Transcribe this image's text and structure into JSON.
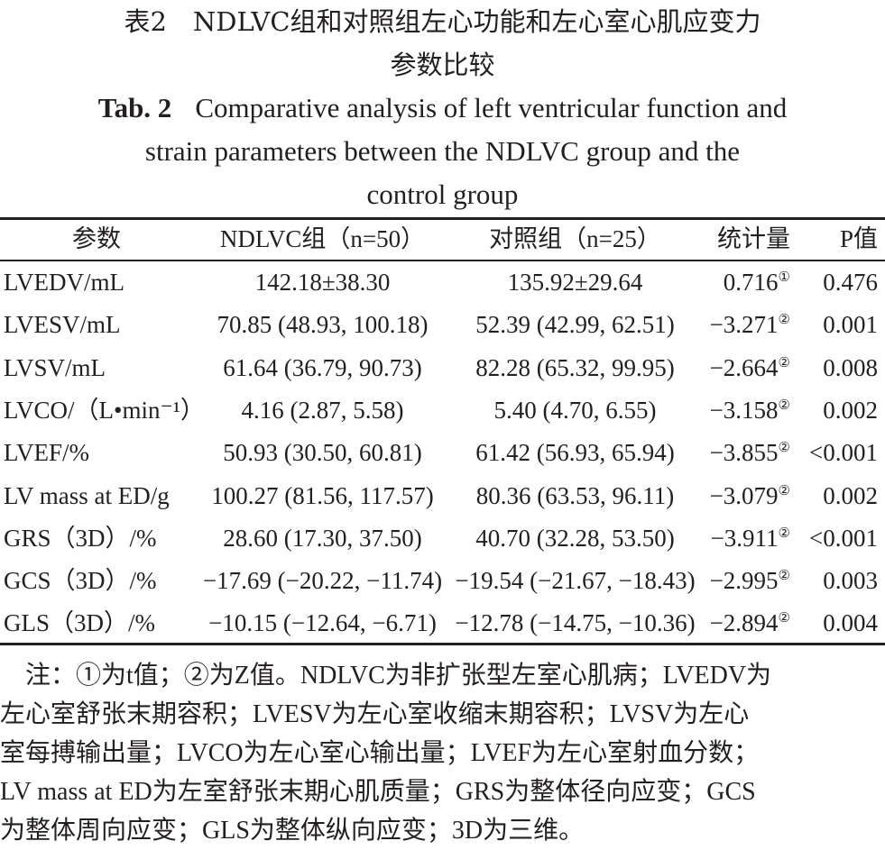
{
  "caption": {
    "cn_line1": "表2　NDLVC组和对照组左心功能和左心室心肌应变力",
    "cn_line2": "参数比较",
    "en_label": "Tab. 2",
    "en_line1": "Comparative analysis of left ventricular function and",
    "en_line2": "strain parameters between the NDLVC group and the",
    "en_line3": "control group"
  },
  "table": {
    "headers": [
      "参数",
      "NDLVC组（n=50）",
      "对照组（n=25）",
      "统计量",
      "P值"
    ],
    "rows": [
      {
        "param": "LVEDV/mL",
        "ndlvc": "142.18±38.30",
        "control": "135.92±29.64",
        "stat": "0.716",
        "mark": "①",
        "p": "0.476"
      },
      {
        "param": "LVESV/mL",
        "ndlvc": "70.85 (48.93, 100.18)",
        "control": "52.39 (42.99, 62.51)",
        "stat": "−3.271",
        "mark": "②",
        "p": "0.001"
      },
      {
        "param": "LVSV/mL",
        "ndlvc": "61.64 (36.79, 90.73)",
        "control": "82.28 (65.32, 99.95)",
        "stat": "−2.664",
        "mark": "②",
        "p": "0.008"
      },
      {
        "param": "LVCO/（L•min⁻¹）",
        "ndlvc": "4.16 (2.87, 5.58)",
        "control": "5.40 (4.70, 6.55)",
        "stat": "−3.158",
        "mark": "②",
        "p": "0.002"
      },
      {
        "param": "LVEF/%",
        "ndlvc": "50.93 (30.50, 60.81)",
        "control": "61.42 (56.93, 65.94)",
        "stat": "−3.855",
        "mark": "②",
        "p": "<0.001"
      },
      {
        "param": "LV mass at ED/g",
        "ndlvc": "100.27 (81.56, 117.57)",
        "control": "80.36 (63.53, 96.11)",
        "stat": "−3.079",
        "mark": "②",
        "p": "0.002"
      },
      {
        "param": "GRS（3D）/%",
        "ndlvc": "28.60 (17.30, 37.50)",
        "control": "40.70 (32.28, 53.50)",
        "stat": "−3.911",
        "mark": "②",
        "p": "<0.001"
      },
      {
        "param": "GCS（3D）/%",
        "ndlvc": "−17.69 (−20.22, −11.74)",
        "control": "−19.54 (−21.67, −18.43)",
        "stat": "−2.995",
        "mark": "②",
        "p": "0.003"
      },
      {
        "param": "GLS（3D）/%",
        "ndlvc": "−10.15 (−12.64, −6.71)",
        "control": "−12.78 (−14.75, −10.36)",
        "stat": "−2.894",
        "mark": "②",
        "p": "0.004"
      }
    ]
  },
  "notes": {
    "lines": [
      "　注：①为t值；②为Z值。NDLVC为非扩张型左室心肌病；LVEDV为",
      "左心室舒张末期容积；LVESV为左心室收缩末期容积；LVSV为左心",
      "室每搏输出量；LVCO为左心室心输出量；LVEF为左心室射血分数；",
      "LV mass at ED为左室舒张末期心肌质量；GRS为整体径向应变；GCS",
      "为整体周向应变；GLS为整体纵向应变；3D为三维。"
    ]
  }
}
